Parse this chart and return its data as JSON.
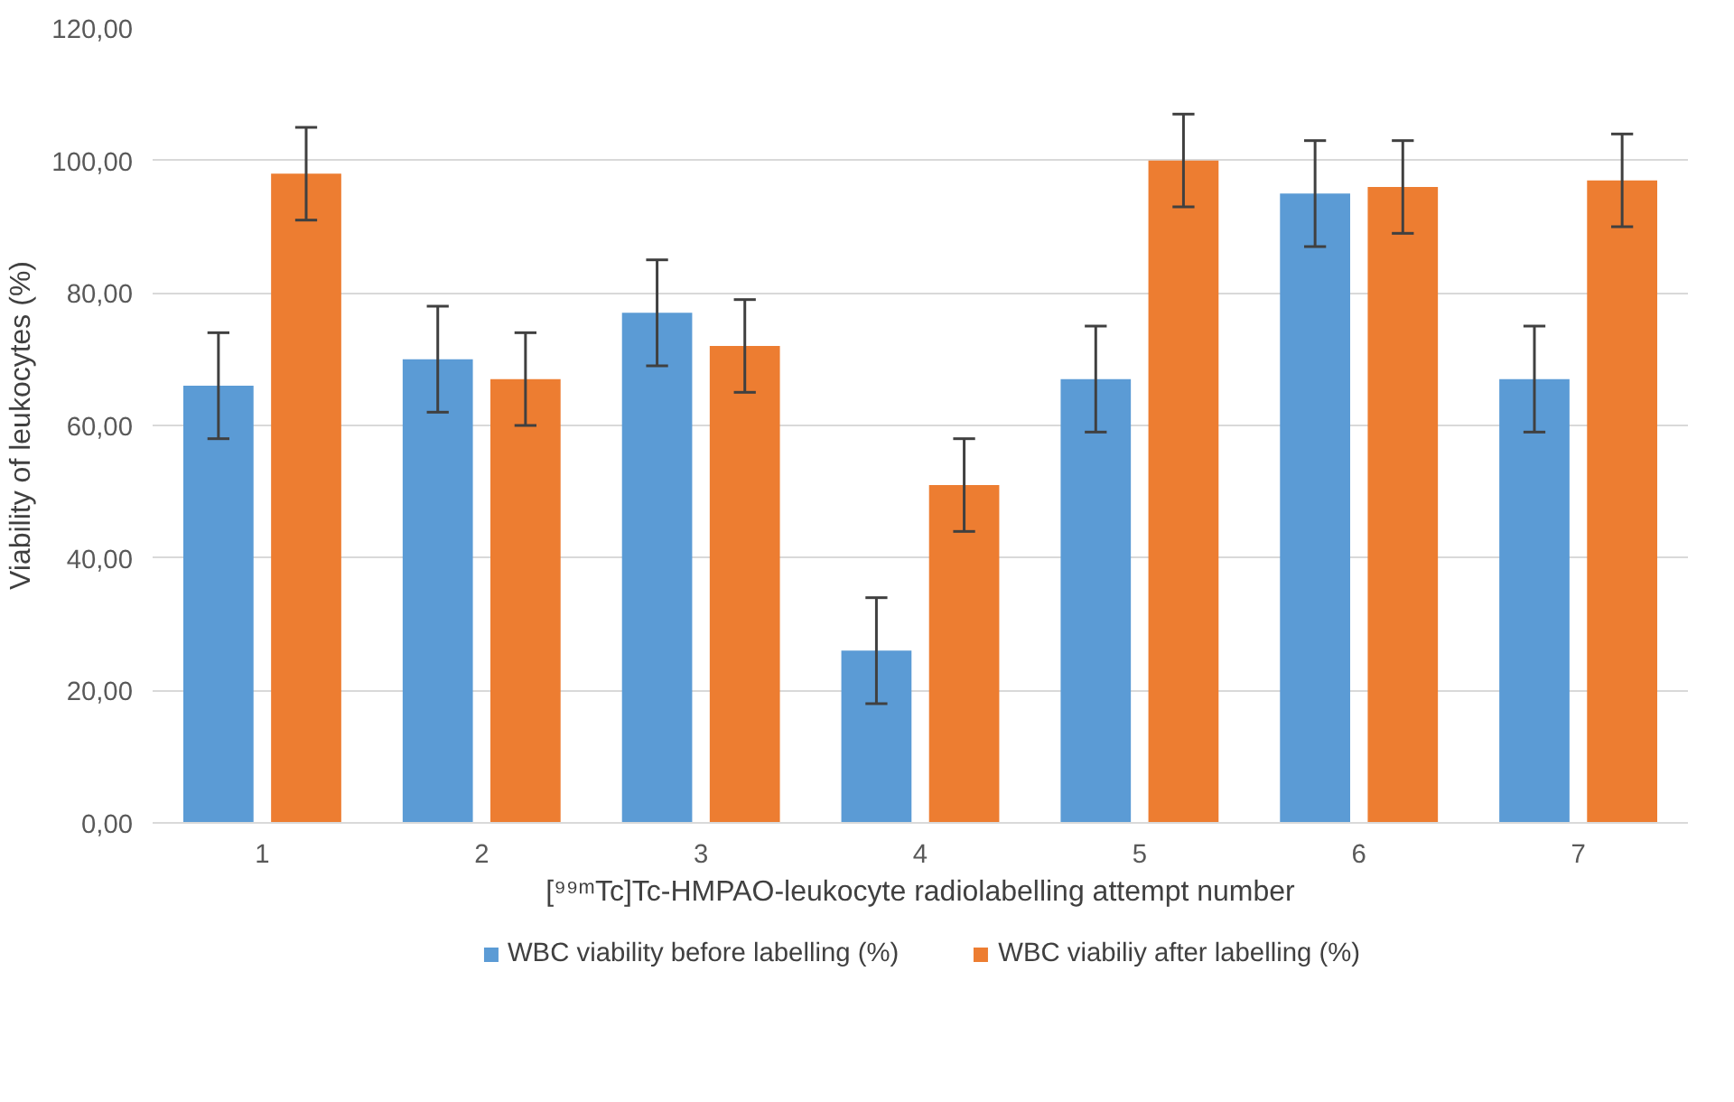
{
  "chart_data": {
    "type": "bar",
    "xlabel": "[⁹⁹ᵐTc]Tc-HMPAO-leukocyte radiolabelling attempt number",
    "ylabel": "Viability of leukocytes (%)",
    "categories": [
      "1",
      "2",
      "3",
      "4",
      "5",
      "6",
      "7"
    ],
    "series": [
      {
        "name": "WBC viability before labelling (%)",
        "color": "#5b9bd5",
        "values": [
          66,
          70,
          77,
          26,
          67,
          95,
          67
        ],
        "errors": [
          8,
          8,
          8,
          8,
          8,
          8,
          8
        ]
      },
      {
        "name": "WBC viabiliy after labelling (%)",
        "color": "#ed7d31",
        "values": [
          98,
          67,
          72,
          51,
          100,
          96,
          97
        ],
        "errors": [
          7,
          7,
          7,
          7,
          7,
          7,
          7
        ]
      }
    ],
    "ylim": [
      0,
      120
    ],
    "yticks": [
      {
        "value": 0,
        "label": "0,00"
      },
      {
        "value": 20,
        "label": "20,00"
      },
      {
        "value": 40,
        "label": "40,00"
      },
      {
        "value": 60,
        "label": "60,00"
      },
      {
        "value": 80,
        "label": "80,00"
      },
      {
        "value": 100,
        "label": "100,00"
      },
      {
        "value": 120,
        "label": "120,00"
      }
    ],
    "grid": "y",
    "legend": "bottom"
  }
}
